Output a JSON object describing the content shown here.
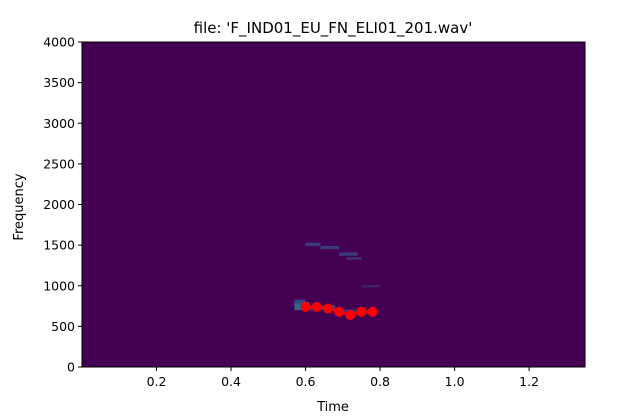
{
  "chart_data": {
    "type": "heatmap",
    "subtype": "spectrogram-with-pitch-overlay",
    "title": "file: 'F_IND01_EU_FN_ELI01_201.wav'",
    "xlabel": "Time",
    "ylabel": "Frequency",
    "xlim": [
      0.0,
      1.35
    ],
    "ylim": [
      0,
      4000
    ],
    "xticks": [
      0.2,
      0.4,
      0.6,
      0.8,
      1.0,
      1.2
    ],
    "xtick_labels": [
      "0.2",
      "0.4",
      "0.6",
      "0.8",
      "1.0",
      "1.2"
    ],
    "yticks": [
      0,
      500,
      1000,
      1500,
      2000,
      2500,
      3000,
      3500,
      4000
    ],
    "ytick_labels": [
      "0",
      "500",
      "1000",
      "1500",
      "2000",
      "2500",
      "3000",
      "3500",
      "4000"
    ],
    "grid": false,
    "legend": "none",
    "colormap": "viridis",
    "background_color": "#440154",
    "spectral_energy": [
      {
        "x0": 0.57,
        "x1": 0.61,
        "y0": 700,
        "y1": 800,
        "intensity": 0.55
      },
      {
        "x0": 0.57,
        "x1": 0.6,
        "y0": 780,
        "y1": 830,
        "intensity": 0.35
      },
      {
        "x0": 0.6,
        "x1": 0.68,
        "y0": 700,
        "y1": 760,
        "intensity": 0.35
      },
      {
        "x0": 0.68,
        "x1": 0.78,
        "y0": 650,
        "y1": 710,
        "intensity": 0.25
      },
      {
        "x0": 0.6,
        "x1": 0.64,
        "y0": 1490,
        "y1": 1530,
        "intensity": 0.3
      },
      {
        "x0": 0.64,
        "x1": 0.69,
        "y0": 1450,
        "y1": 1490,
        "intensity": 0.3
      },
      {
        "x0": 0.69,
        "x1": 0.74,
        "y0": 1370,
        "y1": 1410,
        "intensity": 0.3
      },
      {
        "x0": 0.71,
        "x1": 0.75,
        "y0": 1320,
        "y1": 1350,
        "intensity": 0.25
      },
      {
        "x0": 0.75,
        "x1": 0.8,
        "y0": 980,
        "y1": 1010,
        "intensity": 0.15
      }
    ],
    "series": [
      {
        "type": "scatter-line",
        "color": "#ff0000",
        "x": [
          0.6,
          0.63,
          0.66,
          0.69,
          0.72,
          0.75,
          0.78
        ],
        "y": [
          740,
          740,
          720,
          680,
          640,
          680,
          680
        ]
      }
    ]
  }
}
